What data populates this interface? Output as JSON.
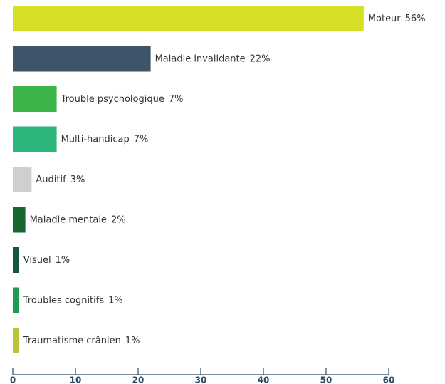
{
  "chart_data": {
    "type": "bar",
    "orientation": "horizontal",
    "categories": [
      "Moteur",
      "Maladie invalidante",
      "Trouble psychologique",
      "Multi-handicap",
      "Auditif",
      "Maladie mentale",
      "Visuel",
      "Troubles cognitifs",
      "Traumatisme crânien"
    ],
    "values": [
      56,
      22,
      7,
      7,
      3,
      2,
      1,
      1,
      1
    ],
    "value_labels": [
      "56%",
      "22%",
      "7%",
      "7%",
      "3%",
      "2%",
      "1%",
      "1%",
      "1%"
    ],
    "colors": [
      "#d5df23",
      "#3e5468",
      "#3db449",
      "#2cb67b",
      "#cfcfcf",
      "#18672f",
      "#15573a",
      "#1f9b52",
      "#b9c23a"
    ],
    "xlim": [
      0,
      60
    ],
    "xticks": [
      0,
      10,
      20,
      30,
      40,
      50,
      60
    ],
    "grid": false
  }
}
